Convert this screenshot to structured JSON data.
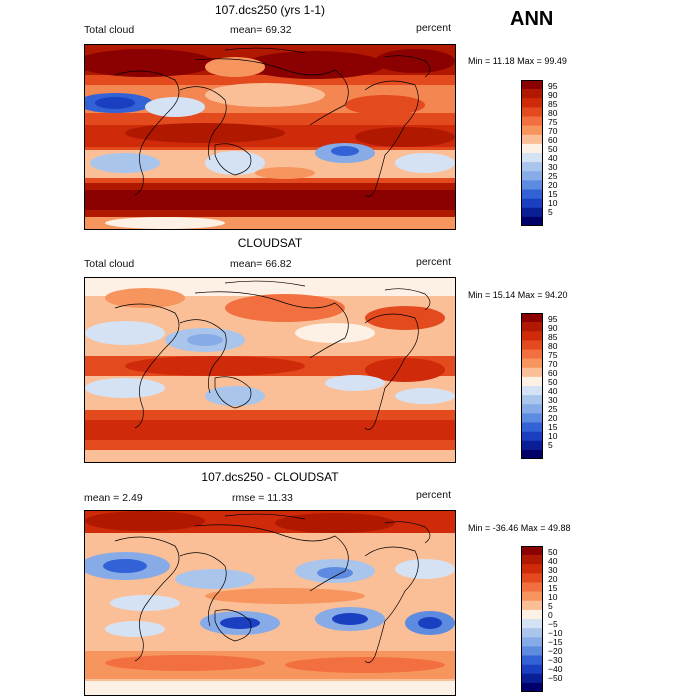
{
  "season": "ANN",
  "panels": [
    {
      "title": "107.dcs250 (yrs 1-1)",
      "left_label": "Total cloud",
      "mid_label": "mean=  69.32",
      "right_label": "percent",
      "minmax": "Min =  11.18 Max =  99.49",
      "levels": [
        "95",
        "90",
        "85",
        "80",
        "75",
        "70",
        "60",
        "50",
        "40",
        "30",
        "25",
        "20",
        "15",
        "10",
        "5"
      ],
      "colors": [
        "#8b0000",
        "#b01800",
        "#cf2a0a",
        "#e34a1e",
        "#f2703f",
        "#f7955f",
        "#fbbf98",
        "#fdf0e4",
        "#d4e2f4",
        "#a9c5ec",
        "#86abe6",
        "#5c8be0",
        "#3262d6",
        "#1a3fc0",
        "#0a1f96",
        "#00006b"
      ]
    },
    {
      "title": "CLOUDSAT",
      "left_label": "Total cloud",
      "mid_label": "mean=  66.82",
      "right_label": "percent",
      "minmax": "Min =  15.14 Max =  94.20",
      "levels": [
        "95",
        "90",
        "85",
        "80",
        "75",
        "70",
        "60",
        "50",
        "40",
        "30",
        "25",
        "20",
        "15",
        "10",
        "5"
      ],
      "colors": [
        "#8b0000",
        "#b01800",
        "#cf2a0a",
        "#e34a1e",
        "#f2703f",
        "#f7955f",
        "#fbbf98",
        "#fdf0e4",
        "#d4e2f4",
        "#a9c5ec",
        "#86abe6",
        "#5c8be0",
        "#3262d6",
        "#1a3fc0",
        "#0a1f96",
        "#00006b"
      ]
    },
    {
      "title": "107.dcs250 - CLOUDSAT",
      "left_label": "mean =    2.49",
      "mid_label": "rmse =  11.33",
      "right_label": "percent",
      "minmax": "Min = -36.46 Max =  49.88",
      "levels": [
        "50",
        "40",
        "30",
        "20",
        "15",
        "10",
        "5",
        "0",
        "−5",
        "−10",
        "−15",
        "−20",
        "−30",
        "−40",
        "−50"
      ],
      "colors": [
        "#8b0000",
        "#b01800",
        "#cf2a0a",
        "#e34a1e",
        "#f2703f",
        "#f7955f",
        "#fbbf98",
        "#fdf0e4",
        "#d4e2f4",
        "#a9c5ec",
        "#86abe6",
        "#5c8be0",
        "#3262d6",
        "#1a3fc0",
        "#0a1f96",
        "#00006b"
      ]
    }
  ]
}
